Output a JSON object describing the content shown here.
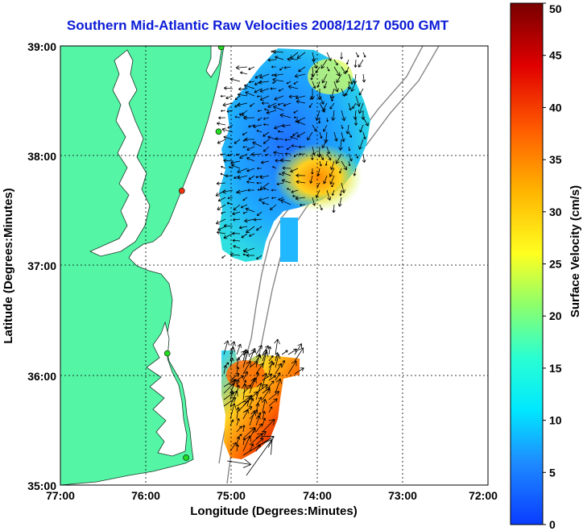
{
  "title": "Southern Mid-Atlantic Raw Velocities 2008/12/17 0500 GMT",
  "xlabel": "Longitude (Degrees:Minutes)",
  "ylabel": "Latitude (Degrees:Minutes)",
  "x_ticks": [
    "77:00",
    "76:00",
    "75:00",
    "74:00",
    "73:00",
    "72:00"
  ],
  "y_ticks": [
    "39:00",
    "38:00",
    "37:00",
    "36:00",
    "35:00"
  ],
  "colorbar": {
    "label": "Surface Velocity (cm/s)",
    "ticks": [
      "0",
      "5",
      "10",
      "15",
      "20",
      "25",
      "30",
      "35",
      "40",
      "45",
      "50"
    ],
    "min": 0,
    "max": 50
  },
  "colors": {
    "land": "#55f5a6",
    "water": "#ffffff",
    "title": "#0b1bd6",
    "station": "#22dd22",
    "station_alt": "#ee3311",
    "grid": "#000000"
  },
  "map_extent": {
    "lon": [
      -77,
      -72
    ],
    "lat": [
      35,
      39
    ]
  },
  "stations": [
    {
      "lon": -75.12,
      "lat": 38.99,
      "status": "ok"
    },
    {
      "lon": -75.15,
      "lat": 38.22,
      "status": "ok"
    },
    {
      "lon": -75.58,
      "lat": 37.68,
      "status": "alert"
    },
    {
      "lon": -75.75,
      "lat": 36.2,
      "status": "ok"
    },
    {
      "lon": -75.53,
      "lat": 35.25,
      "status": "ok"
    }
  ]
}
